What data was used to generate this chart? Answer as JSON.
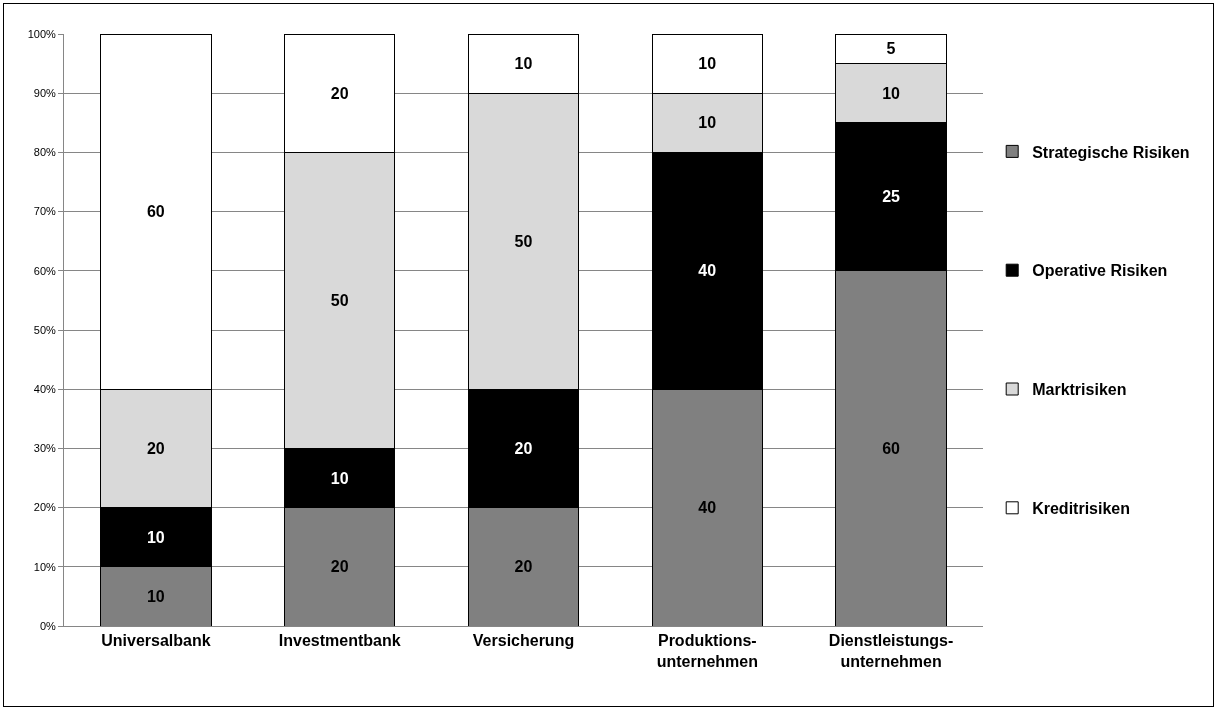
{
  "chart_data": {
    "type": "bar",
    "stacked": true,
    "data_labels": true,
    "grid": "y",
    "legend": "right",
    "categories": [
      "Universalbank",
      "Investmentbank",
      "Versicherung",
      "Produktions-\nunternehmen",
      "Dienstleistungs-\nunternehmen"
    ],
    "series": [
      {
        "name": "Strategische Risiken",
        "color": "#808080",
        "values": [
          10,
          20,
          20,
          40,
          60
        ]
      },
      {
        "name": "Operative Risiken",
        "color": "#000000",
        "values": [
          10,
          10,
          20,
          40,
          25
        ]
      },
      {
        "name": "Marktrisiken",
        "color": "#d9d9d9",
        "values": [
          20,
          50,
          50,
          10,
          10
        ]
      },
      {
        "name": "Kreditrisiken",
        "color": "#ffffff",
        "values": [
          60,
          20,
          10,
          10,
          5
        ]
      }
    ],
    "ylim": [
      0,
      100
    ],
    "yticks": [
      {
        "value": 0,
        "label": "0%"
      },
      {
        "value": 10,
        "label": "10%"
      },
      {
        "value": 20,
        "label": "20%"
      },
      {
        "value": 30,
        "label": "30%"
      },
      {
        "value": 40,
        "label": "40%"
      },
      {
        "value": 50,
        "label": "50%"
      },
      {
        "value": 60,
        "label": "60%"
      },
      {
        "value": 70,
        "label": "70%"
      },
      {
        "value": 80,
        "label": "80%"
      },
      {
        "value": 90,
        "label": "90%"
      },
      {
        "value": 100,
        "label": "100%"
      }
    ]
  }
}
